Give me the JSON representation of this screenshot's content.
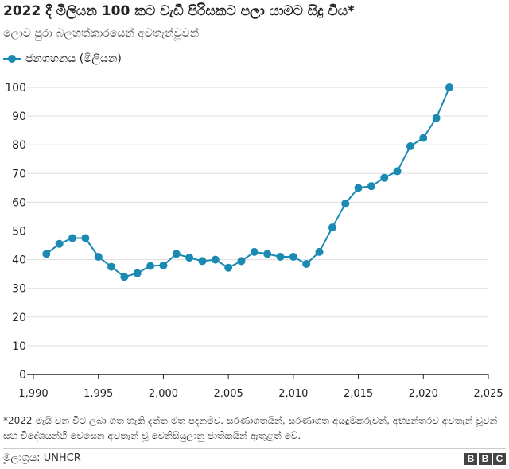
{
  "title": "2022 දී මිලියන 100 කට වැඩි පිරිසකට පලා යාමට සිදු විය*",
  "subtitle": "ලොව පුරා බලහත්කාරයෙන් අවතැන්වූවන්",
  "legend": {
    "label": "ජනගහනය (මිලියන)"
  },
  "footnote": "*2022 මැයි වන විට ලබා ගත හැකි දත්ත මත පදනම්ව. සරණාගතයින්, සරණාගත අයදුම්කරුවන්, අභ්‍යන්තරව අවතැන් වූවන් සහ විදේශයන්හි වෙසෙන අවතැන් වූ වෙනිසියුලානු ජාතිකයින් ඇතුළත් වේ.",
  "source": "මූලාශ්‍රය: UNHCR",
  "brand": [
    "B",
    "B",
    "C"
  ],
  "colors": {
    "series": "#1b8ab3",
    "axis": "#222222",
    "grid": "#dddddd"
  },
  "chart_data": {
    "type": "line",
    "title": "2022 දී මිලියන 100 කට වැඩි පිරිසකට පලා යාමට සිදු විය*",
    "xlabel": "",
    "ylabel": "",
    "xlim": [
      1990,
      2025
    ],
    "ylim": [
      0,
      100
    ],
    "x_ticks": [
      "1,990",
      "1,995",
      "2,000",
      "2,005",
      "2,010",
      "2,015",
      "2,020",
      "2,025"
    ],
    "x_tick_values": [
      1990,
      1995,
      2000,
      2005,
      2010,
      2015,
      2020,
      2025
    ],
    "y_ticks": [
      0,
      10,
      20,
      30,
      40,
      50,
      60,
      70,
      80,
      90,
      100
    ],
    "grid": true,
    "series": [
      {
        "name": "ජනගහනය (මිලියන)",
        "x": [
          1991,
          1992,
          1993,
          1994,
          1995,
          1996,
          1997,
          1998,
          1999,
          2000,
          2001,
          2002,
          2003,
          2004,
          2005,
          2006,
          2007,
          2008,
          2009,
          2010,
          2011,
          2012,
          2013,
          2014,
          2015,
          2016,
          2017,
          2018,
          2019,
          2020,
          2021,
          2022
        ],
        "values": [
          42,
          45.5,
          47.5,
          47.5,
          41,
          37.5,
          34,
          35.3,
          37.8,
          38,
          42,
          40.7,
          39.5,
          40,
          37.2,
          39.5,
          42.7,
          42,
          41,
          41,
          38.5,
          42.7,
          51.2,
          59.5,
          65,
          65.6,
          68.5,
          70.8,
          79.5,
          82.4,
          89.3,
          100
        ]
      }
    ]
  }
}
